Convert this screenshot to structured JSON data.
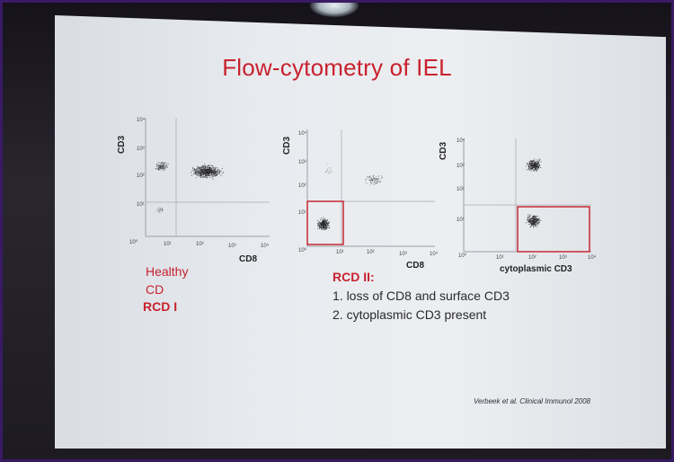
{
  "slide": {
    "title": "Flow-cytometry of IEL",
    "plots": [
      {
        "ylabel": "CD3",
        "xlabel": "CD8",
        "ticks": [
          "10⁰",
          "10¹",
          "10²",
          "10³",
          "10⁴"
        ],
        "gate": false
      },
      {
        "ylabel": "CD3",
        "xlabel": "CD8",
        "ticks": [
          "10⁰",
          "10¹",
          "10²",
          "10³",
          "10⁴"
        ],
        "gate": true
      },
      {
        "ylabel": "CD3",
        "xlabel": "cytoplasmic CD3",
        "ticks": [
          "10⁰",
          "10¹",
          "10²",
          "10³",
          "10⁴"
        ],
        "gate": true
      }
    ],
    "legend": {
      "healthy": "Healthy",
      "cd": "CD",
      "rcd1": "RCD I"
    },
    "rcd2": {
      "heading": "RCD II:",
      "point1": "1. loss of CD8 and surface CD3",
      "point2": "2. cytoplasmic CD3 present"
    },
    "citation": "Verbeek et al. Clinical Immunol 2008",
    "colors": {
      "title": "#c8222e",
      "gate": "#c62a31",
      "text": "#2a2a2a"
    }
  }
}
